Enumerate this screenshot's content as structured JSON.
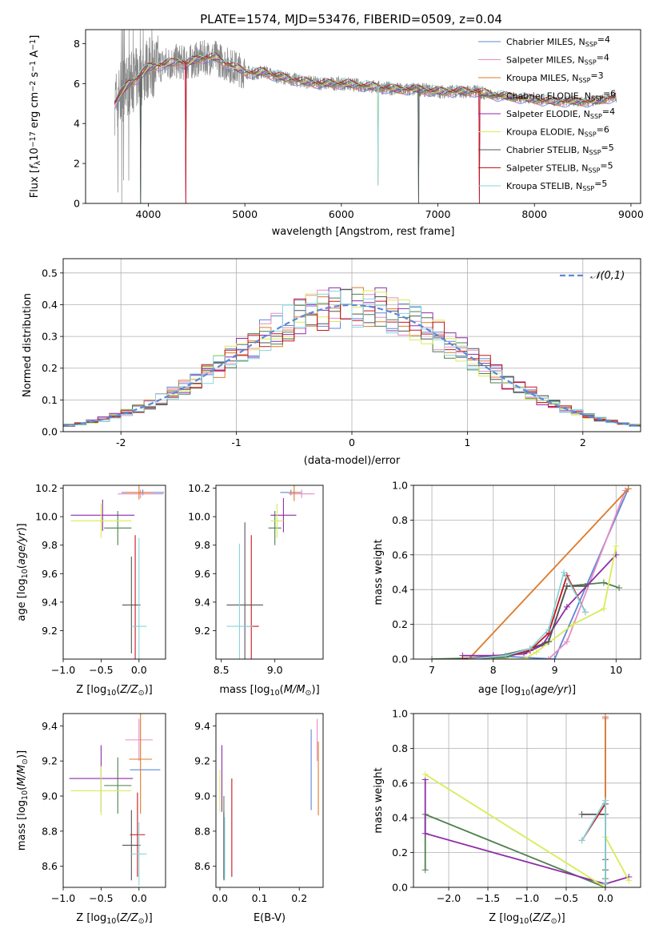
{
  "title": "PLATE=1574, MJD=53476, FIBERID=0509, z=0.04",
  "colors": [
    "#5f87d8",
    "#e68cc2",
    "#dd7a2a",
    "#4f7f4f",
    "#8e2ca8",
    "#d8ec55",
    "#555555",
    "#c8151b",
    "#86d6dc"
  ],
  "models": [
    "Chabrier MILES, N$SSP=4",
    "Salpeter MILES, N$SSP=4",
    "Kroupa MILES, N$SSP=3",
    "Chabrier ELODIE, N$SSP=6",
    "Salpeter ELODIE, N$SSP=4",
    "Kroupa ELODIE, N$SSP=6",
    "Chabrier STELIB, N$SSP=5",
    "Salpeter STELIB, N$SSP=5",
    "Kroupa STELIB, N$SSP=5"
  ],
  "legend_sub": "SSP",
  "chart_data": [
    {
      "id": "spectrum",
      "type": "line",
      "title": "PLATE=1574, MJD=53476, FIBERID=0509, z=0.04",
      "xlabel": "wavelength [Angstrom, rest frame]",
      "ylabel": "Flux [f_λ 10^-17 erg cm^-2 s^-1 A^-1]",
      "xlim": [
        3350,
        9100
      ],
      "ylim": [
        0,
        8.7
      ],
      "xticks": [
        4000,
        5000,
        6000,
        7000,
        8000,
        9000
      ],
      "yticks": [
        0,
        2,
        4,
        6,
        8
      ],
      "continuum": [
        [
          3650,
          5.0
        ],
        [
          3700,
          5.4
        ],
        [
          3800,
          6.0
        ],
        [
          3900,
          6.3
        ],
        [
          4000,
          6.8
        ],
        [
          4100,
          6.9
        ],
        [
          4200,
          7.0
        ],
        [
          4300,
          7.1
        ],
        [
          4400,
          7.0
        ],
        [
          4500,
          7.2
        ],
        [
          4600,
          7.3
        ],
        [
          4700,
          7.3
        ],
        [
          4800,
          7.0
        ],
        [
          4900,
          6.8
        ],
        [
          5000,
          6.6
        ],
        [
          5100,
          6.5
        ],
        [
          5200,
          6.6
        ],
        [
          5300,
          6.4
        ],
        [
          5400,
          6.3
        ],
        [
          5500,
          6.2
        ],
        [
          5600,
          6.1
        ],
        [
          5800,
          6.0
        ],
        [
          6000,
          6.0
        ],
        [
          6200,
          5.9
        ],
        [
          6400,
          5.8
        ],
        [
          6600,
          5.7
        ],
        [
          6800,
          5.7
        ],
        [
          7000,
          5.6
        ],
        [
          7200,
          5.6
        ],
        [
          7400,
          5.6
        ],
        [
          7600,
          5.4
        ],
        [
          7800,
          5.3
        ],
        [
          8000,
          5.2
        ],
        [
          8200,
          5.1
        ],
        [
          8400,
          5.1
        ],
        [
          8600,
          5.1
        ],
        [
          8800,
          5.3
        ]
      ]
    },
    {
      "id": "residuals",
      "type": "histogram",
      "xlabel": "(data-model)/error",
      "ylabel": "Normed distribution",
      "xlim": [
        -2.5,
        2.5
      ],
      "ylim": [
        0,
        0.545
      ],
      "xticks": [
        -2,
        -1,
        0,
        1,
        2
      ],
      "yticks": [
        0.0,
        0.1,
        0.2,
        0.3,
        0.4,
        0.5
      ],
      "grid": true,
      "legend": "𝒩(0,1)",
      "legend_position": "top-right",
      "gaussian": {
        "mean": 0,
        "sigma": 1
      }
    },
    {
      "id": "age-vs-Z",
      "type": "errorbar",
      "xlabel": "Z [log10(Z/Z☉)]",
      "ylabel": "age [log10(age/yr)]",
      "xlim": [
        -1.0,
        0.35
      ],
      "ylim": [
        9.0,
        10.22
      ],
      "xticks": [
        -1.0,
        -0.5,
        0.0
      ],
      "yticks": [
        9.2,
        9.4,
        9.6,
        9.8,
        10.0,
        10.2
      ],
      "points": [
        {
          "x": 0.05,
          "xerr": 0.28,
          "y": 10.17,
          "yerr": 0.02
        },
        {
          "x": 0.02,
          "xerr": 0.3,
          "y": 10.16,
          "yerr": 0.03
        },
        {
          "x": 0.0,
          "xerr": 0.18,
          "y": 10.17,
          "yerr": 0.05
        },
        {
          "x": -0.28,
          "xerr": 0.18,
          "y": 9.92,
          "yerr": 0.12
        },
        {
          "x": -0.48,
          "xerr": 0.42,
          "y": 10.01,
          "yerr": 0.11
        },
        {
          "x": -0.5,
          "xerr": 0.4,
          "y": 9.97,
          "yerr": 0.12
        },
        {
          "x": -0.1,
          "xerr": 0.12,
          "y": 9.38,
          "yerr": 0.34
        },
        {
          "x": -0.05,
          "xerr": 0.02,
          "y": 9.23,
          "yerr": 0.64
        },
        {
          "x": 0.0,
          "xerr": 0.1,
          "y": 9.23,
          "yerr": 0.62
        }
      ]
    },
    {
      "id": "age-vs-mass",
      "type": "errorbar",
      "xlabel": "mass [log10(M/M☉)]",
      "ylabel": "",
      "xlim": [
        8.45,
        9.45
      ],
      "ylim": [
        9.0,
        10.22
      ],
      "xticks": [
        8.5,
        9.0
      ],
      "yticks": [
        9.2,
        9.4,
        9.6,
        9.8,
        10.0,
        10.2
      ],
      "points": [
        {
          "x": 9.15,
          "xerr": 0.1,
          "y": 10.17,
          "yerr": 0.02
        },
        {
          "x": 9.25,
          "xerr": 0.12,
          "y": 10.16,
          "yerr": 0.03
        },
        {
          "x": 9.18,
          "xerr": 0.05,
          "y": 10.17,
          "yerr": 0.06
        },
        {
          "x": 9.0,
          "xerr": 0.06,
          "y": 9.92,
          "yerr": 0.12
        },
        {
          "x": 9.08,
          "xerr": 0.12,
          "y": 10.01,
          "yerr": 0.12
        },
        {
          "x": 9.02,
          "xerr": 0.06,
          "y": 9.97,
          "yerr": 0.12
        },
        {
          "x": 8.72,
          "xerr": 0.17,
          "y": 9.38,
          "yerr": 0.58
        },
        {
          "x": 8.78,
          "xerr": 0.07,
          "y": 9.23,
          "yerr": 0.64
        },
        {
          "x": 8.67,
          "xerr": 0.12,
          "y": 9.23,
          "yerr": 0.58
        }
      ]
    },
    {
      "id": "weight-vs-age",
      "type": "line",
      "xlabel": "age [log10(age/yr)]",
      "ylabel": "mass weight",
      "xlim": [
        6.7,
        10.4
      ],
      "ylim": [
        0,
        1.0
      ],
      "xticks": [
        7,
        8,
        9,
        10
      ],
      "yticks": [
        0.0,
        0.2,
        0.4,
        0.6,
        0.8,
        1.0
      ],
      "grid": true,
      "series": [
        {
          "x": [
            7.5,
            8.0,
            9.0,
            10.2
          ],
          "y": [
            0.0,
            0.02,
            0.0,
            0.98
          ]
        },
        {
          "x": [
            8.9,
            9.2,
            10.15
          ],
          "y": [
            0.0,
            0.1,
            0.97
          ]
        },
        {
          "x": [
            7.6,
            10.2
          ],
          "y": [
            0.0,
            0.98
          ]
        },
        {
          "x": [
            7.0,
            8.2,
            8.6,
            8.9,
            9.2,
            9.8,
            10.05
          ],
          "y": [
            0.0,
            0.01,
            0.05,
            0.1,
            0.42,
            0.44,
            0.41
          ]
        },
        {
          "x": [
            7.5,
            8.0,
            8.5,
            8.8,
            9.2,
            10.0
          ],
          "y": [
            0.02,
            0.02,
            0.03,
            0.08,
            0.3,
            0.6
          ]
        },
        {
          "x": [
            8.0,
            8.5,
            8.7,
            9.3,
            9.8,
            10.0
          ],
          "y": [
            0.0,
            0.0,
            0.04,
            0.2,
            0.29,
            0.65
          ]
        },
        {
          "x": [
            7.5,
            8.0,
            8.6,
            8.9,
            9.2,
            9.5
          ],
          "y": [
            0.0,
            0.01,
            0.06,
            0.1,
            0.42,
            0.42
          ]
        },
        {
          "x": [
            7.5,
            8.2,
            8.6,
            8.9,
            9.2,
            9.5
          ],
          "y": [
            0.0,
            0.02,
            0.05,
            0.15,
            0.48,
            0.27
          ]
        },
        {
          "x": [
            7.6,
            8.2,
            8.6,
            8.9,
            9.15,
            9.5
          ],
          "y": [
            0.0,
            0.02,
            0.06,
            0.17,
            0.5,
            0.27
          ]
        }
      ]
    },
    {
      "id": "mass-vs-Z",
      "type": "errorbar",
      "xlabel": "Z [log10(Z/Z☉)]",
      "ylabel": "mass [log10(M/M☉)]",
      "xlim": [
        -1.0,
        0.35
      ],
      "ylim": [
        8.48,
        9.47
      ],
      "xticks": [
        -1.0,
        -0.5,
        0.0
      ],
      "yticks": [
        8.6,
        8.8,
        9.0,
        9.2,
        9.4
      ],
      "points": [
        {
          "x": 0.08,
          "xerr": 0.2,
          "y": 9.15,
          "yerr": 0.0
        },
        {
          "x": 0.0,
          "xerr": 0.18,
          "y": 9.32,
          "yerr": 0.12
        },
        {
          "x": 0.02,
          "xerr": 0.15,
          "y": 9.21,
          "yerr": 0.31
        },
        {
          "x": -0.28,
          "xerr": 0.18,
          "y": 9.06,
          "yerr": 0.16
        },
        {
          "x": -0.5,
          "xerr": 0.42,
          "y": 9.1,
          "yerr": 0.19
        },
        {
          "x": -0.5,
          "xerr": 0.4,
          "y": 9.03,
          "yerr": 0.14
        },
        {
          "x": -0.1,
          "xerr": 0.12,
          "y": 8.72,
          "yerr": 0.2
        },
        {
          "x": -0.02,
          "xerr": 0.1,
          "y": 8.78,
          "yerr": 0.24
        },
        {
          "x": 0.0,
          "xerr": 0.1,
          "y": 8.67,
          "yerr": 0.18
        }
      ]
    },
    {
      "id": "mass-vs-EBV",
      "type": "errorbar",
      "xlabel": "E(B-V)",
      "ylabel": "",
      "xlim": [
        -0.01,
        0.26
      ],
      "ylim": [
        8.48,
        9.47
      ],
      "xticks": [
        0.0,
        0.1,
        0.2
      ],
      "yticks": [
        8.6,
        8.8,
        9.0,
        9.2,
        9.4
      ],
      "points": [
        {
          "x": 0.23,
          "xerr": 0.0,
          "y": 9.15,
          "yerr": 0.23
        },
        {
          "x": 0.245,
          "xerr": 0.0,
          "y": 9.32,
          "yerr": 0.12
        },
        {
          "x": 0.248,
          "xerr": 0.0,
          "y": 9.1,
          "yerr": 0.21
        },
        {
          "x": 0.01,
          "xerr": 0.0,
          "y": 8.76,
          "yerr": 0.24
        },
        {
          "x": 0.005,
          "xerr": 0.0,
          "y": 9.1,
          "yerr": 0.19
        },
        {
          "x": 0.0,
          "xerr": 0.0,
          "y": 9.03,
          "yerr": 0.12
        },
        {
          "x": 0.01,
          "xerr": 0.0,
          "y": 8.72,
          "yerr": 0.19
        },
        {
          "x": 0.03,
          "xerr": 0.0,
          "y": 8.82,
          "yerr": 0.28
        },
        {
          "x": 0.012,
          "xerr": 0.0,
          "y": 8.7,
          "yerr": 0.18
        }
      ]
    },
    {
      "id": "weight-vs-Z",
      "type": "line",
      "xlabel": "Z [log10(Z/Z☉)]",
      "ylabel": "mass weight",
      "xlim": [
        -2.45,
        0.45
      ],
      "ylim": [
        0,
        1.0
      ],
      "xticks": [
        -2.0,
        -1.5,
        -1.0,
        -0.5,
        0.0
      ],
      "yticks": [
        0.0,
        0.2,
        0.4,
        0.6,
        0.8,
        1.0
      ],
      "grid": true,
      "series": [
        {
          "x": [
            0.0,
            0.0,
            0.0,
            0.0
          ],
          "y": [
            0.0,
            0.02,
            0.5,
            0.98
          ]
        },
        {
          "x": [
            0.0,
            0.0,
            0.0
          ],
          "y": [
            0.0,
            0.1,
            0.97
          ]
        },
        {
          "x": [
            0.0,
            0.0
          ],
          "y": [
            0.0,
            0.98
          ]
        },
        {
          "x": [
            -2.3,
            -2.3,
            0.0,
            0.0,
            0.0
          ],
          "y": [
            0.1,
            0.42,
            0.0,
            0.05,
            0.1
          ]
        },
        {
          "x": [
            -2.3,
            -2.3,
            0.0,
            0.3
          ],
          "y": [
            0.62,
            0.31,
            0.02,
            0.06
          ]
        },
        {
          "x": [
            -2.3,
            0.0,
            0.0,
            0.3
          ],
          "y": [
            0.65,
            0.0,
            0.29,
            0.04
          ]
        },
        {
          "x": [
            -0.3,
            0.0,
            0.0,
            0.0
          ],
          "y": [
            0.42,
            0.42,
            0.16,
            0.0
          ]
        },
        {
          "x": [
            -0.3,
            0.0,
            0.0
          ],
          "y": [
            0.27,
            0.48,
            0.02
          ]
        },
        {
          "x": [
            -0.3,
            0.0,
            0.0
          ],
          "y": [
            0.27,
            0.5,
            0.02
          ]
        }
      ]
    }
  ]
}
